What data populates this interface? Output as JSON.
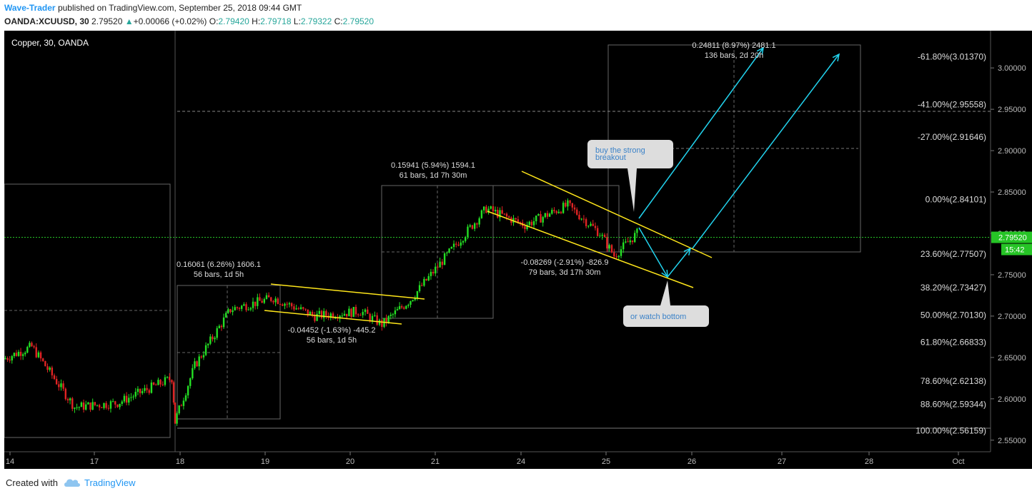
{
  "header": {
    "author": "Wave-Trader",
    "published_text": "published on TradingView.com, September 25, 2018 09:44 GMT",
    "symbol": "OANDA:XCUUSD, 30",
    "last": "2.79520",
    "change_arrow": "▲",
    "change": "+0.00066 (+0.02%)",
    "o_label": "O:",
    "o_value": "2.79420",
    "h_label": "H:",
    "h_value": "2.79718",
    "l_label": "L:",
    "l_value": "2.79322",
    "c_label": "C:",
    "c_value": "2.79520"
  },
  "chart_data": {
    "type": "candlestick",
    "title": "Copper, 30, OANDA",
    "x_labels": [
      "14",
      "17",
      "18",
      "19",
      "20",
      "21",
      "24",
      "25",
      "26",
      "27",
      "28",
      "Oct"
    ],
    "y_ticks": [
      "3.00000",
      "2.95000",
      "2.90000",
      "2.85000",
      "2.80000",
      "2.75000",
      "2.70000",
      "2.65000",
      "2.60000",
      "2.55000"
    ],
    "y_tick_values": [
      3.0,
      2.95,
      2.9,
      2.85,
      2.8,
      2.75,
      2.7,
      2.65,
      2.6,
      2.55
    ],
    "ylim": [
      2.536,
      3.045
    ],
    "current_price": "2.79520",
    "countdown": "15:42",
    "fib_levels": [
      {
        "label": "-61.80%(3.01370)",
        "value": 3.0137
      },
      {
        "label": "-41.00%(2.95558)",
        "value": 2.95558
      },
      {
        "label": "-27.00%(2.91646)",
        "value": 2.91646
      },
      {
        "label": "0.00%(2.84101)",
        "value": 2.84101
      },
      {
        "label": "23.60%(2.77507)",
        "value": 2.77507
      },
      {
        "label": "38.20%(2.73427)",
        "value": 2.73427
      },
      {
        "label": "50.00%(2.70130)",
        "value": 2.7013
      },
      {
        "label": "61.80%(2.66833)",
        "value": 2.66833
      },
      {
        "label": "78.60%(2.62138)",
        "value": 2.62138
      },
      {
        "label": "88.60%(2.59344)",
        "value": 2.59344
      },
      {
        "label": "100.00%(2.56159)",
        "value": 2.56159
      }
    ],
    "measurements": [
      {
        "line1": "0.16061 (6.26%) 1606.1",
        "line2": "56 bars, 1d 5h"
      },
      {
        "line1": "-0.04452 (-1.63%) -445.2",
        "line2": "56 bars, 1d 5h"
      },
      {
        "line1": "0.15941 (5.94%) 1594.1",
        "line2": "61 bars, 1d 7h 30m"
      },
      {
        "line1": "-0.08269 (-2.91%) -826.9",
        "line2": "79 bars, 3d 17h 30m"
      },
      {
        "line1": "0.24811 (8.97%) 2481.1",
        "line2": "136 bars, 2d 20h"
      }
    ],
    "callouts": [
      {
        "text_line1": "buy the strong",
        "text_line2": "breakout"
      },
      {
        "text_line1": "or watch bottom",
        "text_line2": ""
      }
    ],
    "series_segments": [
      {
        "from": 2.648,
        "to": 2.663,
        "n": 10
      },
      {
        "from": 2.663,
        "to": 2.59,
        "n": 20
      },
      {
        "from": 2.59,
        "to": 2.595,
        "n": 20
      },
      {
        "from": 2.595,
        "to": 2.625,
        "n": 20
      },
      {
        "from": 2.625,
        "to": 2.572,
        "n": 4
      },
      {
        "from": 2.572,
        "to": 2.64,
        "n": 10
      },
      {
        "from": 2.64,
        "to": 2.708,
        "n": 14
      },
      {
        "from": 2.708,
        "to": 2.722,
        "n": 10
      },
      {
        "from": 2.722,
        "to": 2.7,
        "n": 20
      },
      {
        "from": 2.7,
        "to": 2.706,
        "n": 20
      },
      {
        "from": 2.706,
        "to": 2.69,
        "n": 8
      },
      {
        "from": 2.69,
        "to": 2.72,
        "n": 12
      },
      {
        "from": 2.72,
        "to": 2.76,
        "n": 12
      },
      {
        "from": 2.76,
        "to": 2.83,
        "n": 16
      },
      {
        "from": 2.83,
        "to": 2.81,
        "n": 12
      },
      {
        "from": 2.81,
        "to": 2.834,
        "n": 18
      },
      {
        "from": 2.834,
        "to": 2.8,
        "n": 16
      },
      {
        "from": 2.8,
        "to": 2.773,
        "n": 12
      },
      {
        "from": 2.773,
        "to": 2.8,
        "n": 10
      }
    ]
  },
  "footer": {
    "created_with": "Created with",
    "brand": "TradingView"
  }
}
